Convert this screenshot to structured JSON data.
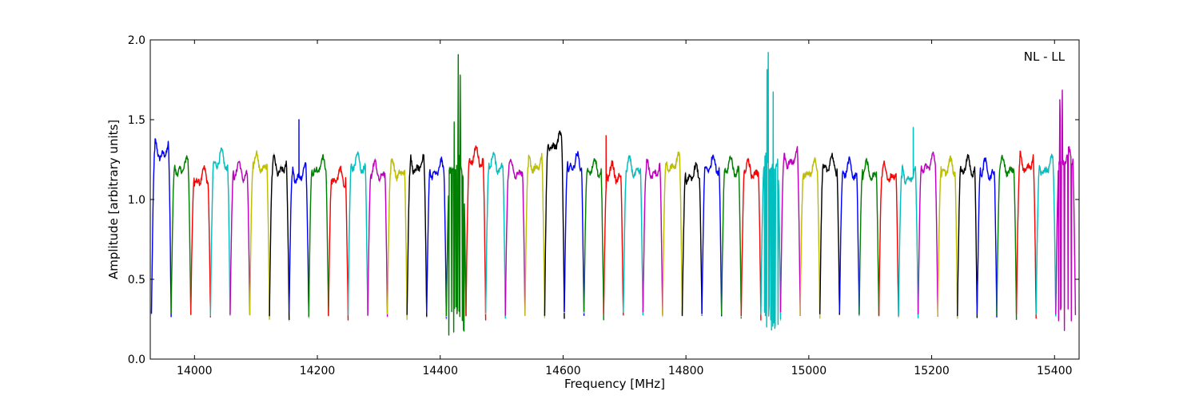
{
  "chart_data": {
    "type": "line",
    "title": "",
    "annotation": "NL - LL",
    "xlabel": "Frequency [MHz]",
    "ylabel": "Amplitude [arbitrary units]",
    "xlim": [
      13928,
      15440
    ],
    "ylim": [
      0.0,
      2.0
    ],
    "grid": false,
    "legend": "none",
    "x_ticks": [
      14000,
      14200,
      14400,
      14600,
      14800,
      15000,
      15200,
      15400
    ],
    "y_ticks": [
      0.0,
      0.5,
      1.0,
      1.5,
      2.0
    ],
    "x_tick_labels": [
      "14000",
      "14200",
      "14400",
      "14600",
      "14800",
      "15000",
      "15200",
      "15400"
    ],
    "y_tick_labels": [
      "0.0",
      "0.5",
      "1.0",
      "1.5",
      "2.0"
    ],
    "colors": [
      "#0000ff",
      "#008000",
      "#ff0000",
      "#00bfbf",
      "#bf00bf",
      "#bfbf00",
      "#000000"
    ],
    "background_trace_color": "#bbbbbb",
    "channel_width_mhz": 32,
    "channels": [
      {
        "start": 13930,
        "level": 1.3
      },
      {
        "start": 13962,
        "level": 1.2
      },
      {
        "start": 13994,
        "level": 1.13
      },
      {
        "start": 14026,
        "level": 1.24
      },
      {
        "start": 14058,
        "level": 1.17
      },
      {
        "start": 14090,
        "level": 1.22
      },
      {
        "start": 14122,
        "level": 1.2
      },
      {
        "start": 14154,
        "level": 1.16,
        "spike": {
          "x": 14170,
          "y": 1.5
        }
      },
      {
        "start": 14186,
        "level": 1.2
      },
      {
        "start": 14218,
        "level": 1.13
      },
      {
        "start": 14250,
        "level": 1.22
      },
      {
        "start": 14282,
        "level": 1.17
      },
      {
        "start": 14314,
        "level": 1.18
      },
      {
        "start": 14346,
        "level": 1.21
      },
      {
        "start": 14378,
        "level": 1.18
      },
      {
        "start": 14410,
        "level": 1.2,
        "rfi": true
      },
      {
        "start": 14442,
        "level": 1.26
      },
      {
        "start": 14474,
        "level": 1.22
      },
      {
        "start": 14506,
        "level": 1.18
      },
      {
        "start": 14538,
        "level": 1.22
      },
      {
        "start": 14570,
        "level": 1.35
      },
      {
        "start": 14602,
        "level": 1.22
      },
      {
        "start": 14634,
        "level": 1.19
      },
      {
        "start": 14666,
        "level": 1.16,
        "spike": {
          "x": 14670,
          "y": 1.4
        }
      },
      {
        "start": 14698,
        "level": 1.19
      },
      {
        "start": 14730,
        "level": 1.18
      },
      {
        "start": 14762,
        "level": 1.22
      },
      {
        "start": 14794,
        "level": 1.15
      },
      {
        "start": 14826,
        "level": 1.21
      },
      {
        "start": 14858,
        "level": 1.2
      },
      {
        "start": 14890,
        "level": 1.18
      },
      {
        "start": 14922,
        "level": 1.22,
        "rfi": true
      },
      {
        "start": 14954,
        "level": 1.25
      },
      {
        "start": 14986,
        "level": 1.18
      },
      {
        "start": 15018,
        "level": 1.21
      },
      {
        "start": 15050,
        "level": 1.18
      },
      {
        "start": 15082,
        "level": 1.17
      },
      {
        "start": 15114,
        "level": 1.16
      },
      {
        "start": 15146,
        "level": 1.15,
        "spike": {
          "x": 15170,
          "y": 1.45
        }
      },
      {
        "start": 15178,
        "level": 1.22
      },
      {
        "start": 15210,
        "level": 1.19
      },
      {
        "start": 15242,
        "level": 1.2
      },
      {
        "start": 15274,
        "level": 1.18
      },
      {
        "start": 15306,
        "level": 1.2
      },
      {
        "start": 15338,
        "level": 1.22
      },
      {
        "start": 15370,
        "level": 1.2
      },
      {
        "start": 15402,
        "level": 1.25,
        "rfi": true
      }
    ]
  }
}
